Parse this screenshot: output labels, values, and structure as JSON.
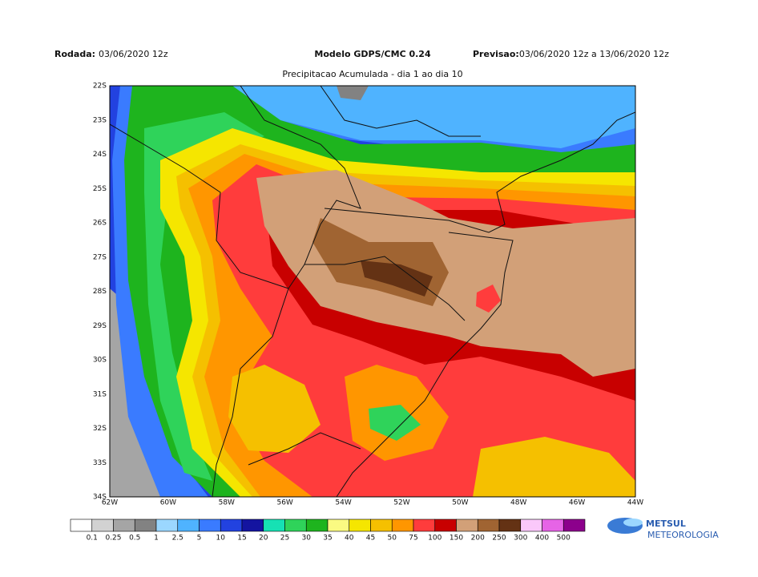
{
  "header": {
    "rodada_label": "Rodada:",
    "rodada": "03/06/2020 12z",
    "model": "Modelo GDPS/CMC 0.24",
    "previsao_label": "Previsao:",
    "previsao": "03/06/2020 12z a 13/06/2020 12z"
  },
  "subtitle": "Precipitacao Acumulada - dia 1 ao dia 10",
  "lat_labels": [
    "22S",
    "23S",
    "24S",
    "25S",
    "26S",
    "27S",
    "28S",
    "29S",
    "30S",
    "31S",
    "32S",
    "33S",
    "34S"
  ],
  "lon_labels": [
    "62W",
    "60W",
    "58W",
    "56W",
    "54W",
    "52W",
    "50W",
    "48W",
    "46W",
    "44W"
  ],
  "legend": {
    "labels": [
      "0.1",
      "0.25",
      "0.5",
      "1",
      "2.5",
      "5",
      "10",
      "15",
      "20",
      "25",
      "30",
      "35",
      "40",
      "45",
      "50",
      "75",
      "100",
      "150",
      "200",
      "250",
      "300",
      "400",
      "500"
    ],
    "colors": [
      "#ffffff",
      "#d2d2d2",
      "#a5a5a5",
      "#828282",
      "#9bd7ff",
      "#4fb3ff",
      "#3a7bff",
      "#2242e0",
      "#1414a0",
      "#16e1b4",
      "#2fd35a",
      "#1eb41e",
      "#fafa82",
      "#f5e600",
      "#f5c000",
      "#ff9600",
      "#ff3c3c",
      "#c80000",
      "#d2a078",
      "#a06432",
      "#643214",
      "#fac8fa",
      "#e664e6",
      "#8c008c"
    ]
  },
  "logo": {
    "name": "METSUL",
    "tagline": "METEOROLOGIA"
  }
}
